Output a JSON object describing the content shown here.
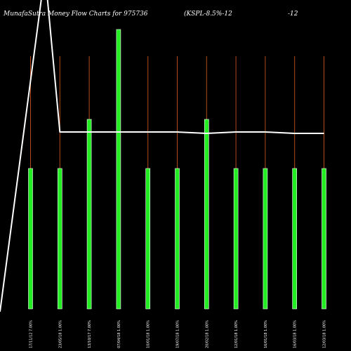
{
  "chart_data": {
    "type": "bar",
    "title_left": "MunafaSutra Money Flow  Charts for 975736",
    "title_right": "(KSPL-8.5%-12",
    "title_extra": "-12",
    "categories": [
      "17/11/12 7.00%",
      "23/05/18 1.00%",
      "13/10/17 7.00%",
      "07/04/18 1.00%",
      "10/01/18 1.00%",
      "19/07/18 1.00%",
      "20/02/18 1.00%",
      "12/01/18 1.00%",
      "16/01/18 1.00%",
      "16/03/18 1.00%",
      "12/03/18 1.00%"
    ],
    "bar_heights": [
      100,
      100,
      135,
      199,
      100,
      100,
      135,
      100,
      100,
      100,
      100
    ],
    "ylim": [
      0,
      200
    ],
    "background": "#000000",
    "bar_color": "#22ee22",
    "bar_edge_color": "#ffffff",
    "stem_color": "#b44a1a",
    "line_color": "#ffffff",
    "flow_line": [
      0,
      1000,
      128,
      128,
      128,
      128,
      127,
      128,
      128,
      127,
      127
    ]
  }
}
